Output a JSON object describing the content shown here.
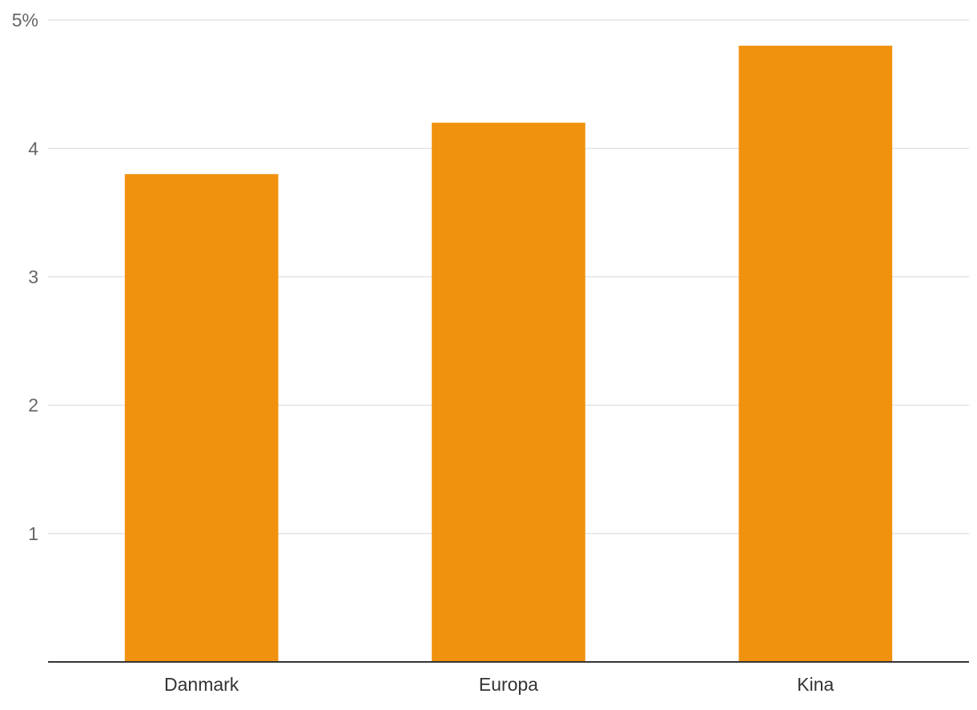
{
  "chart_data": {
    "type": "bar",
    "categories": [
      "Danmark",
      "Europa",
      "Kina"
    ],
    "values": [
      3.8,
      4.2,
      4.8
    ],
    "color": "#f0920e",
    "ylim": [
      0,
      5
    ],
    "yticks": [
      1,
      2,
      3,
      4,
      {
        "value": 5,
        "label": "5%"
      }
    ],
    "grid": true
  }
}
